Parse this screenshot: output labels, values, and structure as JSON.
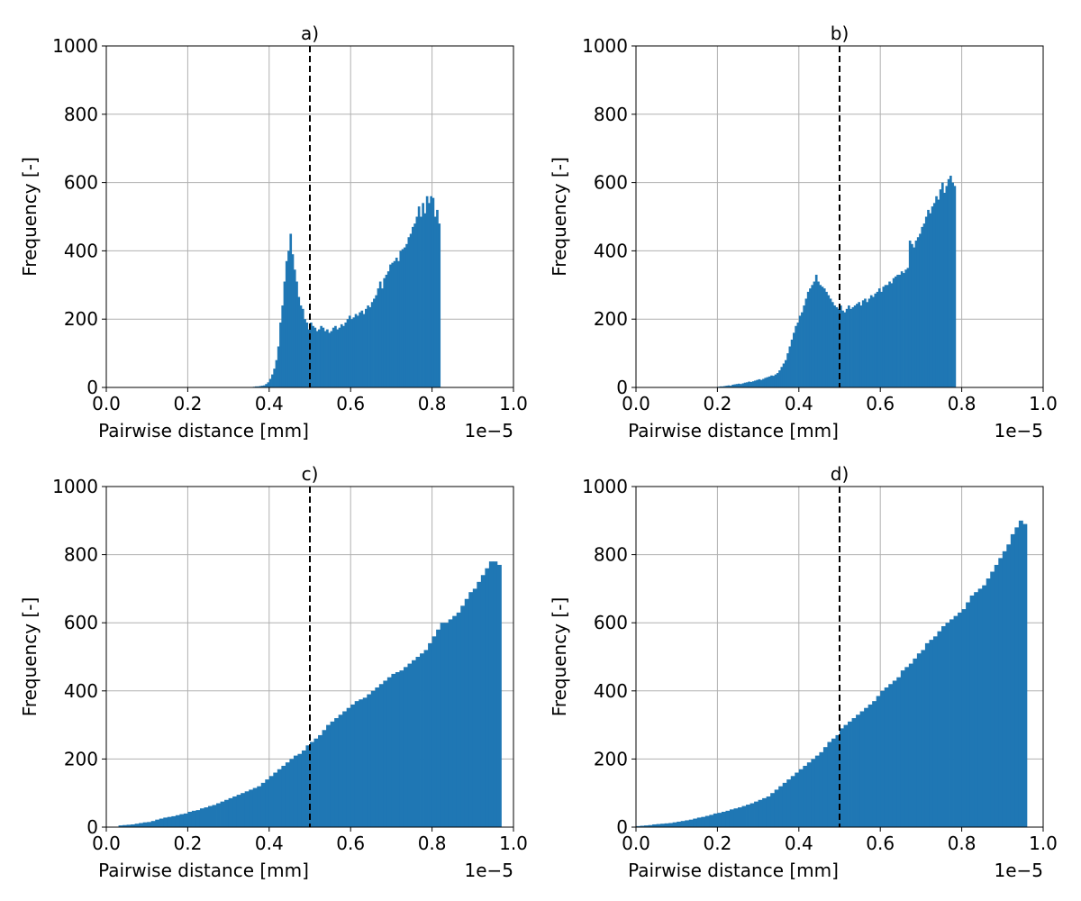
{
  "figure": {
    "colors": {
      "bar": "#1f77b4",
      "grid": "#b0b0b0",
      "vline": "#000000"
    }
  },
  "chart_data": [
    {
      "type": "bar",
      "title": "a)",
      "xlabel": "Pairwise distance [mm]",
      "ylabel": "Frequency [-]",
      "x_offset_text": "1e−5",
      "xlim": [
        0.0,
        1.0
      ],
      "ylim": [
        0,
        1000
      ],
      "xticks": [
        "0.0",
        "0.2",
        "0.4",
        "0.6",
        "0.8",
        "1.0"
      ],
      "yticks": [
        "0",
        "200",
        "400",
        "600",
        "800",
        "1000"
      ],
      "grid": true,
      "vline_x": 0.5,
      "x_start": 0.36,
      "bin_width": 0.005,
      "values": [
        2,
        3,
        3,
        4,
        5,
        6,
        10,
        15,
        25,
        38,
        55,
        80,
        120,
        190,
        240,
        310,
        370,
        400,
        450,
        390,
        345,
        310,
        265,
        240,
        230,
        200,
        190,
        170,
        190,
        180,
        175,
        165,
        170,
        180,
        175,
        165,
        170,
        160,
        165,
        175,
        180,
        170,
        175,
        185,
        180,
        190,
        200,
        210,
        200,
        205,
        215,
        210,
        220,
        225,
        215,
        230,
        240,
        235,
        250,
        260,
        270,
        290,
        310,
        290,
        320,
        330,
        340,
        360,
        365,
        370,
        380,
        370,
        400,
        405,
        410,
        420,
        440,
        450,
        470,
        480,
        500,
        530,
        500,
        540,
        510,
        560,
        540,
        560,
        555,
        500,
        520,
        480
      ]
    },
    {
      "type": "bar",
      "title": "b)",
      "xlabel": "Pairwise distance [mm]",
      "ylabel": "Frequency [-]",
      "x_offset_text": "1e−5",
      "xlim": [
        0.0,
        1.0
      ],
      "ylim": [
        0,
        1000
      ],
      "xticks": [
        "0.0",
        "0.2",
        "0.4",
        "0.6",
        "0.8",
        "1.0"
      ],
      "yticks": [
        "0",
        "200",
        "400",
        "600",
        "800",
        "1000"
      ],
      "grid": true,
      "vline_x": 0.5,
      "x_start": 0.2,
      "bin_width": 0.005,
      "values": [
        2,
        3,
        3,
        4,
        5,
        6,
        5,
        8,
        9,
        10,
        11,
        10,
        12,
        14,
        15,
        17,
        16,
        18,
        20,
        22,
        24,
        22,
        25,
        28,
        30,
        32,
        35,
        34,
        38,
        42,
        50,
        60,
        70,
        80,
        100,
        120,
        140,
        160,
        180,
        190,
        210,
        220,
        240,
        260,
        280,
        290,
        300,
        310,
        330,
        310,
        300,
        295,
        290,
        280,
        270,
        260,
        250,
        240,
        235,
        230,
        240,
        225,
        220,
        230,
        240,
        230,
        235,
        240,
        245,
        250,
        240,
        255,
        260,
        250,
        260,
        270,
        265,
        275,
        280,
        290,
        280,
        295,
        300,
        300,
        310,
        305,
        320,
        325,
        330,
        330,
        340,
        335,
        345,
        350,
        430,
        420,
        410,
        430,
        440,
        450,
        470,
        480,
        500,
        520,
        510,
        530,
        540,
        560,
        550,
        580,
        600,
        570,
        590,
        610,
        620,
        600,
        590
      ]
    },
    {
      "type": "bar",
      "title": "c)",
      "xlabel": "Pairwise distance [mm]",
      "ylabel": "Frequency [-]",
      "x_offset_text": "1e−5",
      "xlim": [
        0.0,
        1.0
      ],
      "ylim": [
        0,
        1000
      ],
      "xticks": [
        "0.0",
        "0.2",
        "0.4",
        "0.6",
        "0.8",
        "1.0"
      ],
      "yticks": [
        "0",
        "200",
        "400",
        "600",
        "800",
        "1000"
      ],
      "grid": true,
      "vline_x": 0.5,
      "x_start": 0.03,
      "bin_width": 0.01,
      "values": [
        5,
        6,
        7,
        8,
        10,
        12,
        14,
        15,
        18,
        22,
        25,
        28,
        30,
        32,
        35,
        38,
        40,
        45,
        48,
        50,
        55,
        58,
        62,
        65,
        70,
        75,
        80,
        85,
        90,
        95,
        100,
        105,
        110,
        115,
        120,
        130,
        140,
        150,
        160,
        170,
        180,
        190,
        200,
        210,
        215,
        225,
        240,
        250,
        260,
        270,
        285,
        300,
        310,
        320,
        330,
        340,
        350,
        360,
        370,
        375,
        380,
        390,
        400,
        410,
        420,
        430,
        440,
        450,
        455,
        460,
        470,
        480,
        490,
        500,
        510,
        520,
        540,
        560,
        580,
        600,
        600,
        610,
        620,
        630,
        650,
        670,
        690,
        700,
        720,
        740,
        760,
        780,
        780,
        770
      ]
    },
    {
      "type": "bar",
      "title": "d)",
      "xlabel": "Pairwise distance [mm]",
      "ylabel": "Frequency [-]",
      "x_offset_text": "1e−5",
      "xlim": [
        0.0,
        1.0
      ],
      "ylim": [
        0,
        1000
      ],
      "xticks": [
        "0.0",
        "0.2",
        "0.4",
        "0.6",
        "0.8",
        "1.0"
      ],
      "yticks": [
        "0",
        "200",
        "400",
        "600",
        "800",
        "1000"
      ],
      "grid": true,
      "vline_x": 0.5,
      "x_start": 0.0,
      "bin_width": 0.01,
      "values": [
        3,
        4,
        5,
        6,
        8,
        9,
        10,
        11,
        12,
        14,
        16,
        18,
        20,
        22,
        25,
        28,
        30,
        33,
        36,
        40,
        42,
        45,
        48,
        52,
        55,
        58,
        62,
        66,
        70,
        75,
        80,
        85,
        90,
        100,
        110,
        120,
        130,
        140,
        150,
        160,
        170,
        180,
        190,
        200,
        210,
        220,
        235,
        250,
        260,
        270,
        290,
        300,
        310,
        320,
        330,
        340,
        350,
        360,
        370,
        385,
        400,
        410,
        420,
        430,
        440,
        460,
        470,
        480,
        495,
        510,
        520,
        540,
        550,
        560,
        575,
        590,
        600,
        610,
        620,
        630,
        640,
        660,
        680,
        690,
        700,
        710,
        730,
        750,
        770,
        790,
        810,
        830,
        860,
        880,
        900,
        890
      ]
    }
  ]
}
